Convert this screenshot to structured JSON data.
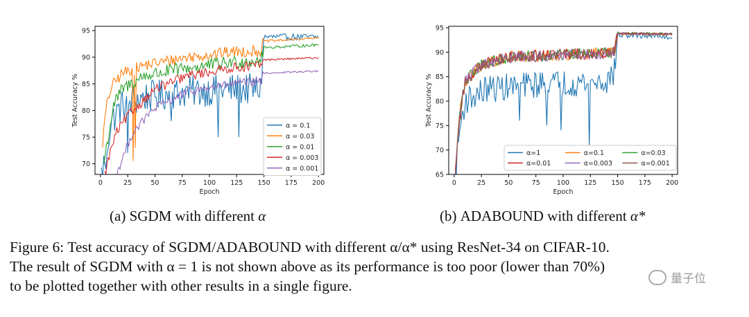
{
  "chart_data": [
    {
      "type": "line",
      "subcaption": {
        "label": "(a)",
        "method": "SGDM",
        "suffix": "with different",
        "param": "α"
      },
      "xlabel": "Epoch",
      "ylabel": "Test Accuracy %",
      "xlim": [
        -5,
        205
      ],
      "ylim": [
        68,
        95.8
      ],
      "xticks": [
        "0",
        "25",
        "50",
        "75",
        "100",
        "125",
        "150",
        "175",
        "200"
      ],
      "yticks": [
        "70",
        "75",
        "80",
        "85",
        "90",
        "95"
      ],
      "legend_position": "lower-right",
      "series": [
        {
          "name": "α = 0.1",
          "color": "#1f77b4",
          "keypoints": [
            [
              1,
              68
            ],
            [
              5,
              72
            ],
            [
              10,
              78
            ],
            [
              20,
              81
            ],
            [
              40,
              82.5
            ],
            [
              80,
              83.5
            ],
            [
              120,
              84
            ],
            [
              147,
              84
            ],
            [
              150,
              93.8
            ],
            [
              200,
              93.8
            ]
          ],
          "noise": 3.0,
          "dips": [
            [
              5,
              69
            ],
            [
              25,
              72
            ],
            [
              65,
              78
            ],
            [
              108,
              75
            ],
            [
              127,
              75
            ]
          ]
        },
        {
          "name": "α = 0.03",
          "color": "#ff7f0e",
          "keypoints": [
            [
              2,
              74
            ],
            [
              5,
              80
            ],
            [
              10,
              84.5
            ],
            [
              20,
              87
            ],
            [
              40,
              88.5
            ],
            [
              80,
              90
            ],
            [
              120,
              91
            ],
            [
              147,
              91.2
            ],
            [
              150,
              93
            ],
            [
              200,
              93.6
            ]
          ],
          "noise": 1.1,
          "dips": [
            [
              30,
              70.5
            ],
            [
              32,
              73
            ]
          ]
        },
        {
          "name": "α = 0.01",
          "color": "#2ca02c",
          "keypoints": [
            [
              3,
              70
            ],
            [
              8,
              76
            ],
            [
              12,
              81
            ],
            [
              20,
              84
            ],
            [
              40,
              86.5
            ],
            [
              80,
              88
            ],
            [
              120,
              89
            ],
            [
              147,
              89.5
            ],
            [
              150,
              91.8
            ],
            [
              200,
              92.3
            ]
          ],
          "noise": 1.3,
          "dips": []
        },
        {
          "name": "α = 0.003",
          "color": "#d62728",
          "keypoints": [
            [
              4,
              68
            ],
            [
              10,
              73
            ],
            [
              15,
              76
            ],
            [
              25,
              79
            ],
            [
              50,
              84
            ],
            [
              80,
              86.5
            ],
            [
              120,
              88
            ],
            [
              147,
              88.5
            ],
            [
              150,
              89.5
            ],
            [
              200,
              89.9
            ]
          ],
          "noise": 0.9,
          "dips": []
        },
        {
          "name": "α = 0.001",
          "color": "#9467bd",
          "keypoints": [
            [
              15,
              68
            ],
            [
              20,
              71
            ],
            [
              30,
              76
            ],
            [
              50,
              80.5
            ],
            [
              80,
              83.5
            ],
            [
              120,
              85
            ],
            [
              147,
              85.5
            ],
            [
              150,
              87
            ],
            [
              200,
              87.4
            ]
          ],
          "noise": 0.8,
          "dips": []
        }
      ]
    },
    {
      "type": "line",
      "subcaption": {
        "label": "(b)",
        "method": "ADABOUND",
        "suffix": "with different",
        "param": "α*"
      },
      "xlabel": "Epoch",
      "ylabel": "Test Accuracy %",
      "xlim": [
        -5,
        205
      ],
      "ylim": [
        65,
        95.3
      ],
      "xticks": [
        "0",
        "25",
        "50",
        "75",
        "100",
        "125",
        "150",
        "175",
        "200"
      ],
      "yticks": [
        "65",
        "70",
        "75",
        "80",
        "85",
        "90",
        "95"
      ],
      "legend_position": "lower-right",
      "series": [
        {
          "name": "α=1",
          "color": "#1f77b4",
          "keypoints": [
            [
              1,
              65
            ],
            [
              5,
              74
            ],
            [
              10,
              80
            ],
            [
              30,
              82.5
            ],
            [
              80,
              83.5
            ],
            [
              140,
              84
            ],
            [
              147,
              86
            ],
            [
              150,
              93.5
            ],
            [
              190,
              93.3
            ],
            [
              200,
              93
            ]
          ],
          "noise": 2.8,
          "dips": [
            [
              60,
              76
            ],
            [
              85,
              75
            ],
            [
              98,
              74
            ],
            [
              124,
              70.5
            ]
          ]
        },
        {
          "name": "α=0.1",
          "color": "#ff7f0e",
          "keypoints": [
            [
              1,
              65
            ],
            [
              5,
              77
            ],
            [
              10,
              84
            ],
            [
              25,
              87.5
            ],
            [
              50,
              89
            ],
            [
              100,
              89.5
            ],
            [
              147,
              90
            ],
            [
              150,
              93.8
            ],
            [
              200,
              93.7
            ]
          ],
          "noise": 1.2,
          "dips": []
        },
        {
          "name": "α=0.03",
          "color": "#2ca02c",
          "keypoints": [
            [
              1,
              65
            ],
            [
              5,
              77
            ],
            [
              10,
              84
            ],
            [
              25,
              87.5
            ],
            [
              50,
              89
            ],
            [
              100,
              89.5
            ],
            [
              147,
              90
            ],
            [
              150,
              94
            ],
            [
              200,
              93.7
            ]
          ],
          "noise": 1.2,
          "dips": []
        },
        {
          "name": "α=0.01",
          "color": "#d62728",
          "keypoints": [
            [
              1,
              65
            ],
            [
              5,
              76
            ],
            [
              10,
              84
            ],
            [
              25,
              87.5
            ],
            [
              50,
              89
            ],
            [
              100,
              89.5
            ],
            [
              147,
              90
            ],
            [
              150,
              93.8
            ],
            [
              200,
              93.7
            ]
          ],
          "noise": 1.2,
          "dips": []
        },
        {
          "name": "α=0.003",
          "color": "#9467bd",
          "keypoints": [
            [
              1,
              65
            ],
            [
              5,
              77
            ],
            [
              10,
              84
            ],
            [
              25,
              87.5
            ],
            [
              50,
              89
            ],
            [
              100,
              89.5
            ],
            [
              147,
              90
            ],
            [
              150,
              93.8
            ],
            [
              200,
              93.7
            ]
          ],
          "noise": 1.2,
          "dips": []
        },
        {
          "name": "α=0.001",
          "color": "#8c564b",
          "keypoints": [
            [
              1,
              65
            ],
            [
              5,
              77
            ],
            [
              10,
              84
            ],
            [
              25,
              87.5
            ],
            [
              50,
              89
            ],
            [
              100,
              89.5
            ],
            [
              147,
              90
            ],
            [
              150,
              93.8
            ],
            [
              200,
              93.7
            ]
          ],
          "noise": 1.2,
          "dips": []
        }
      ]
    }
  ],
  "figure_caption": {
    "lead": "Figure 6: Test accuracy of ",
    "m1": "SGDM",
    "slash": "/",
    "m2": "ADABOUND",
    "rest1": " with different α/α* using ResNet-34 on CIFAR-10.",
    "line2a": "The result of ",
    "m3": "SGDM",
    "line2b": " with α = 1 is not shown above as its performance is too poor (lower than 70%)",
    "line3": "to be plotted together with other results in a single figure."
  },
  "watermark": {
    "text": "量子位"
  }
}
